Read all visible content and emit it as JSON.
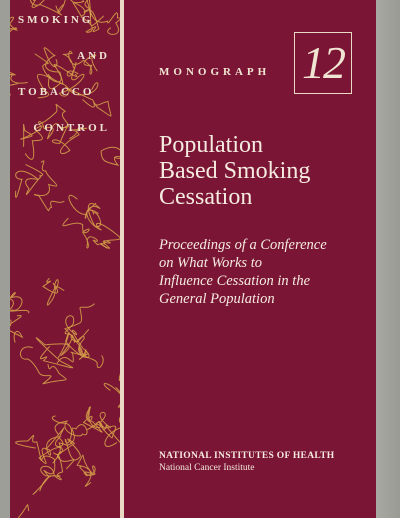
{
  "series": {
    "words": [
      "SMOKING",
      "AND",
      "TOBACCO",
      "CONTROL"
    ]
  },
  "monograph": {
    "label": "MONOGRAPH",
    "number": "12"
  },
  "title": {
    "lines": [
      "Population",
      "Based Smoking",
      "Cessation"
    ]
  },
  "subtitle": {
    "lines": [
      "Proceedings of a Conference",
      "on What Works to",
      "Influence Cessation in the",
      "General Population"
    ]
  },
  "publisher": {
    "agency": "NATIONAL INSTITUTES OF HEALTH",
    "institute": "National Cancer Institute"
  },
  "colors": {
    "cover": "#7b1535",
    "pattern": "#d9a64a",
    "text": "#f5ebe0",
    "side_gray": "#a6a6a0"
  }
}
